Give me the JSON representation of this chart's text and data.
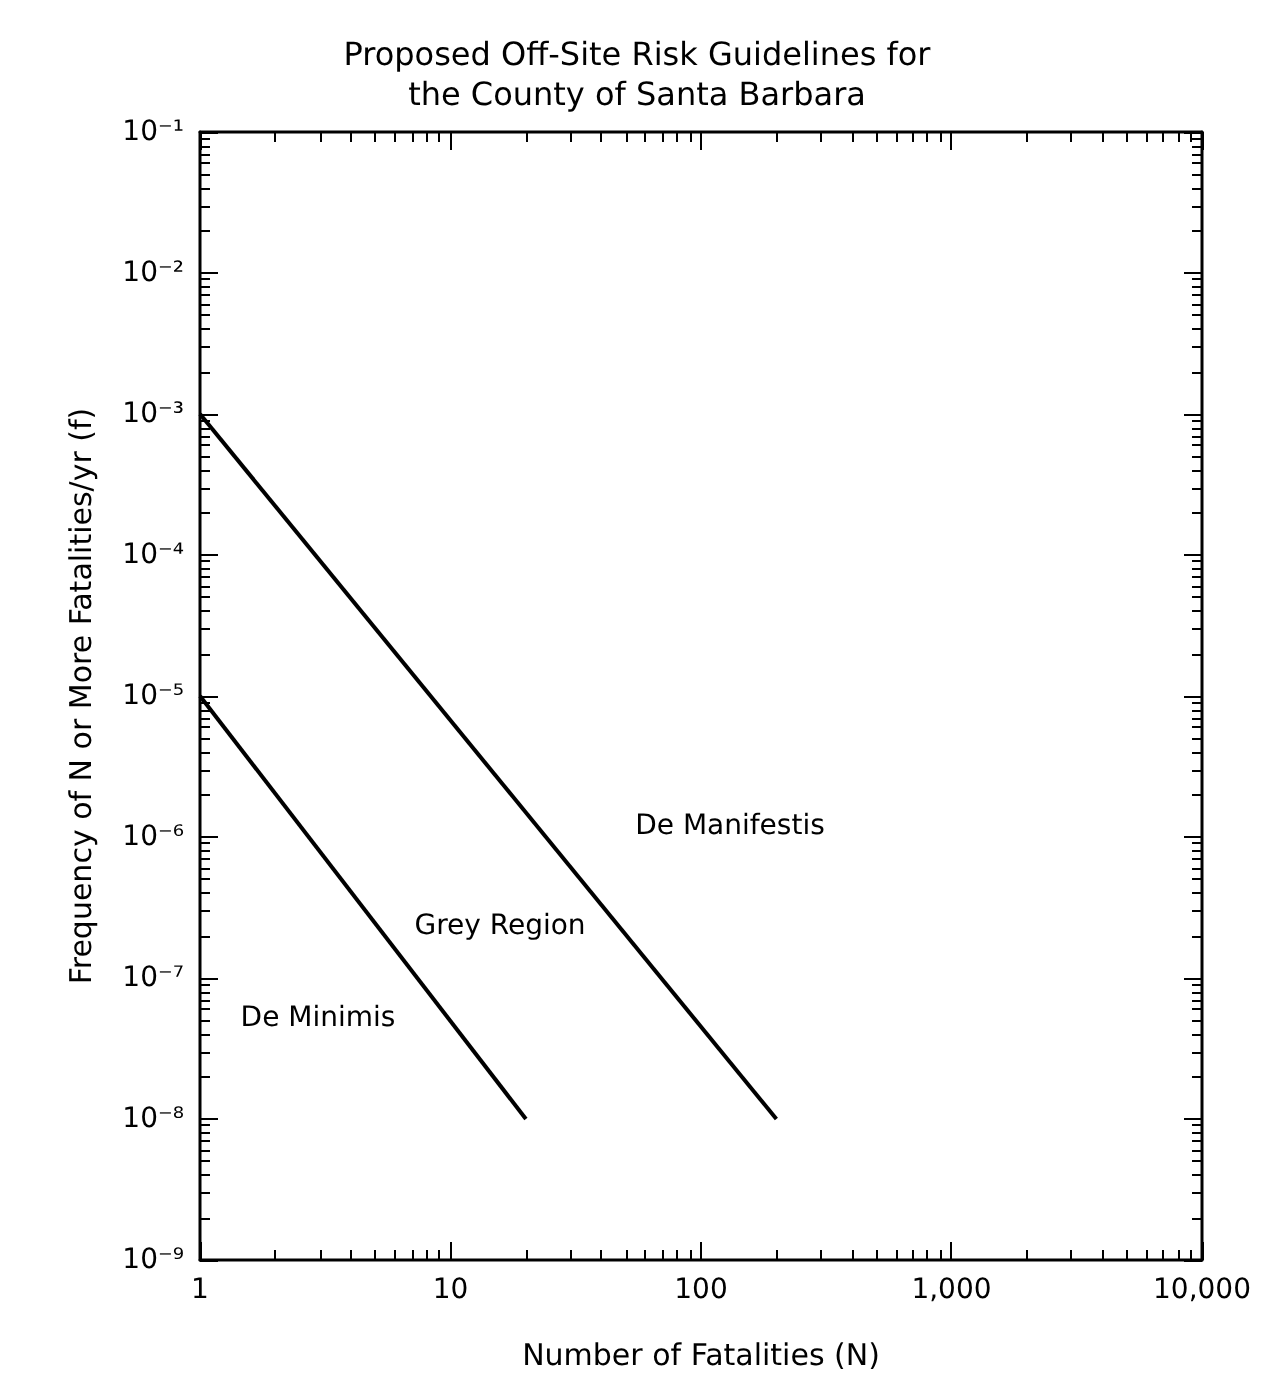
{
  "chart_data": {
    "type": "line",
    "title": "Proposed Off-Site Risk Guidelines for\nthe County of Santa Barbara",
    "xlabel": "Number of Fatalities (N)",
    "ylabel": "Frequency of N or More Fatalities/yr (f)",
    "log": "xy",
    "marker": "none",
    "line_style": "solid",
    "xlim": [
      1,
      10000
    ],
    "xticks": [
      1,
      10,
      100,
      {
        "value": 1000,
        "label": "1,000"
      },
      {
        "value": 10000,
        "label": "10,000"
      }
    ],
    "ylim": [
      1e-09,
      0.1
    ],
    "yticks": [
      {
        "value": 1e-09,
        "label": "10⁻⁹"
      },
      {
        "value": 1e-08,
        "label": "10⁻⁸"
      },
      {
        "value": 1e-07,
        "label": "10⁻⁷"
      },
      {
        "value": 1e-06,
        "label": "10⁻⁶"
      },
      {
        "value": 1e-05,
        "label": "10⁻⁵"
      },
      {
        "value": 0.0001,
        "label": "10⁻⁴"
      },
      {
        "value": 0.001,
        "label": "10⁻³"
      },
      {
        "value": 0.01,
        "label": "10⁻²"
      },
      {
        "value": 0.1,
        "label": "10⁻¹"
      }
    ],
    "series": [
      {
        "color": "#000000",
        "x": [
          1,
          200
        ],
        "values": [
          0.001,
          1e-08
        ]
      },
      {
        "color": "#000000",
        "x": [
          1,
          20
        ],
        "values": [
          1e-05,
          1e-08
        ]
      }
    ],
    "annotations": [
      "De Manifestis",
      "Grey Region",
      "De Minimis"
    ]
  }
}
